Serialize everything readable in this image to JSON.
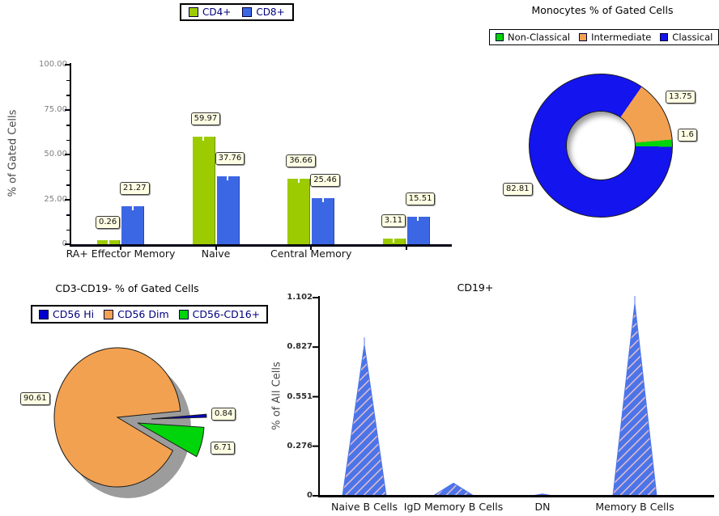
{
  "page": {
    "background": "#FFFFFF"
  },
  "chart_data": [
    {
      "id": "t-cell-subsets-bar",
      "type": "bar",
      "title": "",
      "ylabel": "% of Gated Cells",
      "ylim": [
        0,
        100
      ],
      "ytick_labels": [
        "100.00",
        "75.00",
        "50.00",
        "25.00",
        "0"
      ],
      "ytick_values": [
        100,
        75,
        50,
        25,
        0
      ],
      "categories": [
        "RA+ Effector Memory",
        "Naive",
        "Central Memory",
        ""
      ],
      "series": [
        {
          "name": "CD4+",
          "color": "#9CCB01",
          "values": [
            0.26,
            59.97,
            36.66,
            3.11
          ],
          "value_labels": [
            "0.26",
            "59.97",
            "36.66",
            "3.11"
          ]
        },
        {
          "name": "CD8+",
          "color": "#3C67E4",
          "values": [
            21.27,
            37.76,
            25.46,
            15.51
          ],
          "value_labels": [
            "21.27",
            "37.76",
            "25.46",
            "15.51"
          ]
        }
      ],
      "legend_position": "top",
      "grid": false
    },
    {
      "id": "monocytes-donut",
      "type": "pie",
      "subtype": "donut",
      "title": "Monocytes % of Gated Cells",
      "legend_position": "top",
      "start_angle_deg": 34.7,
      "draw_order": [
        "Intermediate",
        "Non-Classical",
        "Classical"
      ],
      "slices": [
        {
          "label": "Non-Classical",
          "value": 1.6,
          "value_label": "1.6",
          "color": "#00D40A"
        },
        {
          "label": "Intermediate",
          "value": 13.75,
          "value_label": "13.75",
          "color": "#F2A151"
        },
        {
          "label": "Classical",
          "value": 82.81,
          "value_label": "82.81",
          "color": "#1414EE"
        }
      ]
    },
    {
      "id": "nk-cells-pie",
      "type": "pie",
      "subtype": "exploded",
      "title": "CD3-CD19- % of Gated Cells",
      "legend_position": "top",
      "slices": [
        {
          "label": "CD56 Hi",
          "value": 0.84,
          "value_label": "0.84",
          "color": "#0000CC",
          "exploded": true
        },
        {
          "label": "CD56 Dim",
          "value": 90.61,
          "value_label": "90.61",
          "color": "#F2A151",
          "exploded": false
        },
        {
          "label": "CD56-CD16+",
          "value": 6.71,
          "value_label": "6.71",
          "color": "#00D40A",
          "exploded": true
        }
      ],
      "shadow_color": "#9C9C9C"
    },
    {
      "id": "cd19-spikes",
      "type": "area",
      "subtype": "spike",
      "title": "CD19+",
      "ylabel": "% of All Cells",
      "ylim": [
        0,
        1.102
      ],
      "ytick_labels": [
        "1.102",
        "0.827",
        "0.551",
        "0.276",
        "0"
      ],
      "ytick_values": [
        1.102,
        0.827,
        0.551,
        0.276,
        0
      ],
      "categories": [
        "Naive B Cells",
        "IgD Memory B Cells",
        "DN",
        "Memory B Cells"
      ],
      "values": [
        0.84,
        0.07,
        0.01,
        1.07
      ],
      "color": "#4B74E8",
      "hatch_color": "#F2C4CA",
      "grid": false
    }
  ]
}
